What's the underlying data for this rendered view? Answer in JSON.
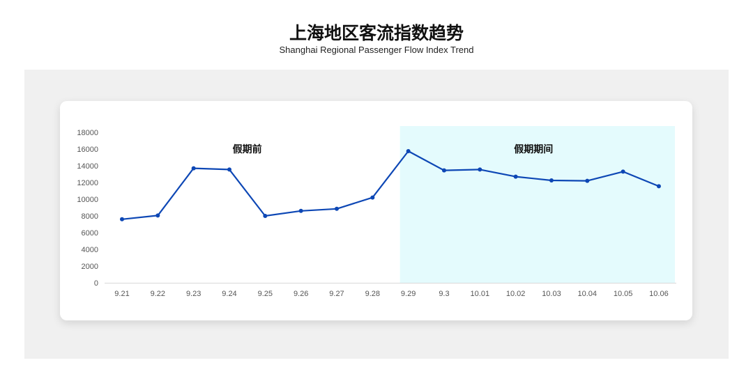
{
  "title": "上海地区客流指数趋势",
  "subtitle": "Shanghai Regional Passenger Flow Index Trend",
  "chart_data": {
    "type": "line",
    "categories": [
      "9.21",
      "9.22",
      "9.23",
      "9.24",
      "9.25",
      "9.26",
      "9.27",
      "9.28",
      "9.29",
      "9.3",
      "10.01",
      "10.02",
      "10.03",
      "10.04",
      "10.05",
      "10.06"
    ],
    "values": [
      7600,
      8050,
      13700,
      13550,
      8000,
      8600,
      8850,
      10200,
      15750,
      13450,
      13550,
      12700,
      12250,
      12200,
      13300,
      11550
    ],
    "ylim": [
      0,
      18000
    ],
    "yticks": [
      0,
      2000,
      4000,
      6000,
      8000,
      10000,
      12000,
      14000,
      16000,
      18000
    ],
    "grid": false,
    "annotations": [
      {
        "text": "假期前",
        "range": [
          "9.21",
          "9.28"
        ]
      },
      {
        "text": "假期期间",
        "range": [
          "9.29",
          "10.06"
        ],
        "shaded": true
      }
    ],
    "colors": {
      "line": "#0d47b5",
      "shade": "#e4fbfd"
    }
  }
}
